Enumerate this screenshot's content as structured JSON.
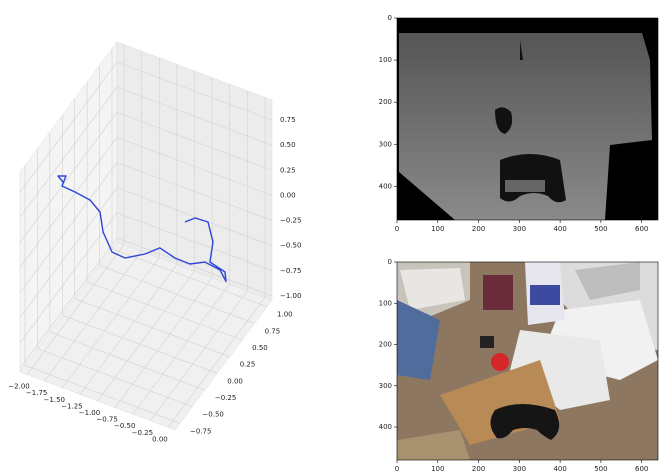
{
  "chart_data": [
    {
      "type": "line3d",
      "xlim": [
        -2.1,
        0.1
      ],
      "ylim": [
        -0.85,
        1.1
      ],
      "zlim": [
        -1.04,
        0.95
      ],
      "xticks": [
        {
          "value": -2,
          "label": "−2.00"
        },
        {
          "value": -1.75,
          "label": "−1.75"
        },
        {
          "value": -1.5,
          "label": "−1.50"
        },
        {
          "value": -1.25,
          "label": "−1.25"
        },
        {
          "value": -1,
          "label": "−1.00"
        },
        {
          "value": -0.75,
          "label": "−0.75"
        },
        {
          "value": -0.5,
          "label": "−0.50"
        },
        {
          "value": -0.25,
          "label": "−0.25"
        },
        {
          "value": 0,
          "label": "0.00"
        }
      ],
      "yticks": [
        {
          "value": -0.75,
          "label": "−0.75"
        },
        {
          "value": -0.5,
          "label": "−0.50"
        },
        {
          "value": -0.25,
          "label": "−0.25"
        },
        {
          "value": 0,
          "label": "0.00"
        },
        {
          "value": 0.25,
          "label": "0.25"
        },
        {
          "value": 0.5,
          "label": "0.50"
        },
        {
          "value": 0.75,
          "label": "0.75"
        },
        {
          "value": 1,
          "label": "1.00"
        }
      ],
      "zticks": [
        {
          "value": -1,
          "label": "−1.00"
        },
        {
          "value": -0.75,
          "label": "−0.75"
        },
        {
          "value": -0.5,
          "label": "−0.50"
        },
        {
          "value": -0.25,
          "label": "−0.25"
        },
        {
          "value": 0,
          "label": "0.00"
        },
        {
          "value": 0.25,
          "label": "0.25"
        },
        {
          "value": 0.5,
          "label": "0.50"
        },
        {
          "value": 0.75,
          "label": "0.75"
        }
      ],
      "grid": true,
      "series": [
        {
          "color": "#2f45d8",
          "x": [
            -1.903,
            -1.974,
            -1.86,
            -1.917,
            -1.732,
            -1.519,
            -1.378,
            -1.334,
            -1.207,
            -1.022,
            -0.738,
            -0.527,
            -0.314,
            -0.1,
            -0.3,
            -0.087,
            -0.002,
            -0.017,
            -0.23,
            -0.186,
            -0.257,
            -0.442,
            -0.584
          ],
          "y": [
            -0.265,
            -0.265,
            -0.265,
            -0.265,
            -0.265,
            -0.265,
            -0.265,
            -0.265,
            -0.265,
            -0.265,
            -0.265,
            -0.265,
            -0.265,
            -0.265,
            0.32,
            0.32,
            0.32,
            0.32,
            0.32,
            0.32,
            0.32,
            0.32,
            0.32
          ],
          "z": [
            0.514,
            0.555,
            0.585,
            0.471,
            0.459,
            0.436,
            0.353,
            0.166,
            0.0,
            -0.011,
            0.103,
            0.219,
            0.175,
            0.171,
            -0.25,
            -0.273,
            -0.364,
            -0.275,
            -0.231,
            -0.02,
            0.16,
            0.151,
            0.074
          ]
        }
      ]
    },
    {
      "type": "image",
      "xlim": [
        0,
        640
      ],
      "ylim": [
        480,
        0
      ],
      "xticks": [
        0,
        100,
        200,
        300,
        400,
        500,
        600
      ],
      "yticks": [
        0,
        100,
        200,
        300,
        400
      ]
    },
    {
      "type": "image",
      "xlim": [
        0,
        640
      ],
      "ylim": [
        480,
        0
      ],
      "xticks": [
        0,
        100,
        200,
        300,
        400,
        500,
        600
      ],
      "yticks": [
        0,
        100,
        200,
        300,
        400
      ]
    }
  ]
}
